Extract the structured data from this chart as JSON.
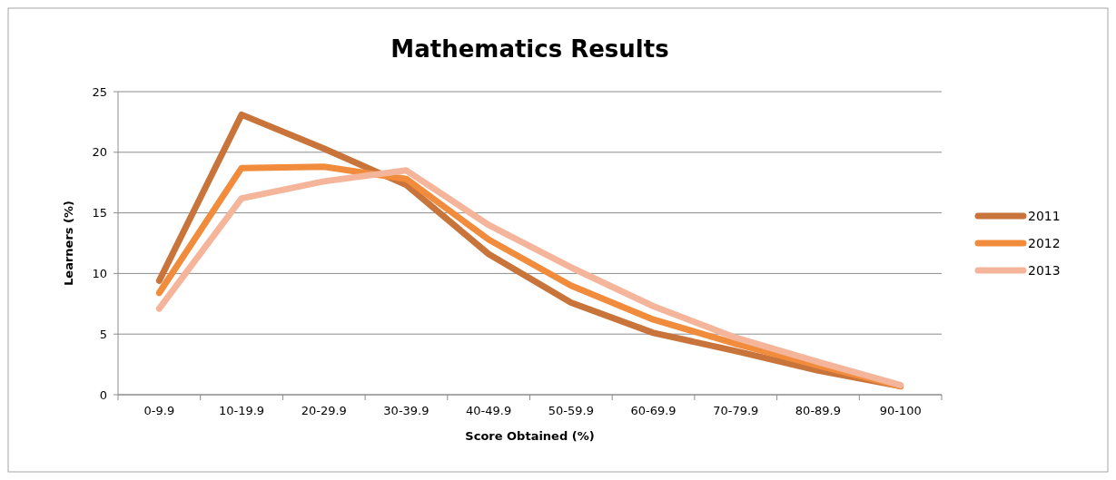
{
  "chart_data": {
    "type": "line",
    "title": "Mathematics Results",
    "xlabel": "Score Obtained (%)",
    "ylabel": "Learners (%)",
    "categories": [
      "0-9.9",
      "10-19.9",
      "20-29.9",
      "30-39.9",
      "40-49.9",
      "50-59.9",
      "60-69.9",
      "70-79.9",
      "80-89.9",
      "90-100"
    ],
    "series": [
      {
        "name": "2011",
        "color": "#c8743a",
        "values": [
          9.4,
          23.1,
          20.3,
          17.3,
          11.6,
          7.6,
          5.1,
          3.6,
          2.0,
          0.7
        ]
      },
      {
        "name": "2012",
        "color": "#f08c3c",
        "values": [
          8.4,
          18.7,
          18.8,
          17.8,
          12.8,
          9.0,
          6.2,
          4.2,
          2.4,
          0.7
        ]
      },
      {
        "name": "2013",
        "color": "#f4b59a",
        "values": [
          7.1,
          16.2,
          17.6,
          18.5,
          14.0,
          10.5,
          7.3,
          4.7,
          2.7,
          0.8
        ]
      }
    ],
    "ylim": [
      0,
      25
    ],
    "yticks": [
      0,
      5,
      10,
      15,
      20,
      25
    ],
    "grid": "y",
    "legend": "right",
    "marker": "none",
    "line_style": "solid"
  }
}
